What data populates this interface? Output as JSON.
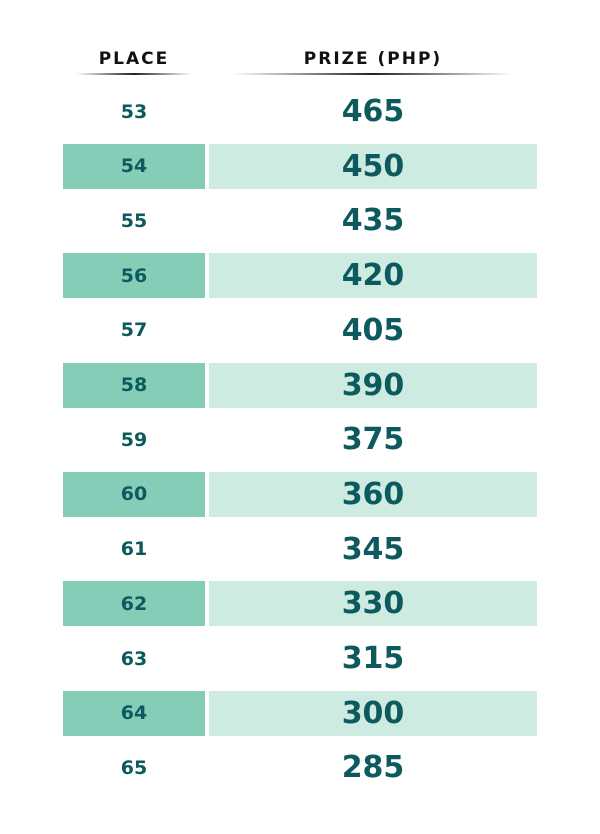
{
  "table": {
    "header": [
      "PLACE",
      "PRIZE (PHP)"
    ],
    "rows": [
      [
        53,
        465
      ],
      [
        54,
        450
      ],
      [
        55,
        435
      ],
      [
        56,
        420
      ],
      [
        57,
        405
      ],
      [
        58,
        390
      ],
      [
        59,
        375
      ],
      [
        60,
        360
      ],
      [
        61,
        345
      ],
      [
        62,
        330
      ],
      [
        63,
        315
      ],
      [
        64,
        300
      ],
      [
        65,
        285
      ]
    ]
  }
}
